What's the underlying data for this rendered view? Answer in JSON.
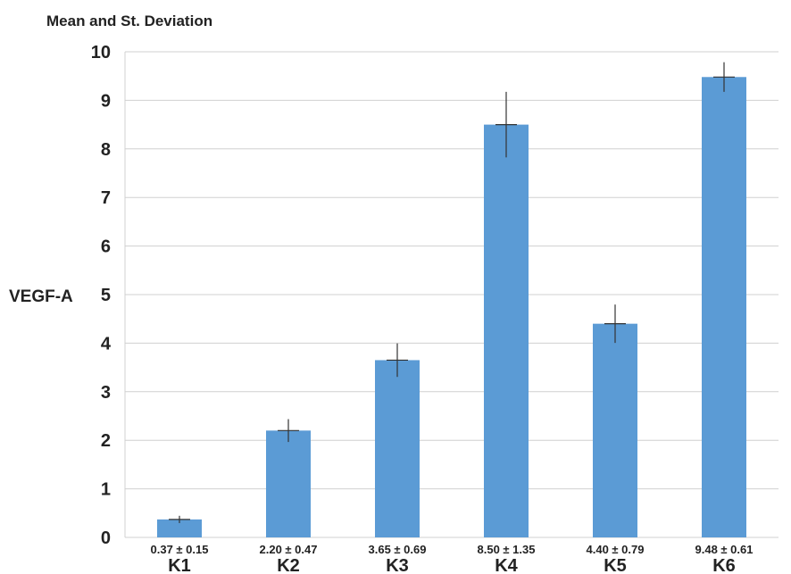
{
  "chart_data": {
    "type": "bar",
    "title": "Mean and St. Deviation",
    "ylabel": "VEGF-A",
    "xlabel": "",
    "categories": [
      "K1",
      "K2",
      "K3",
      "K4",
      "K5",
      "K6"
    ],
    "values": [
      0.37,
      2.2,
      3.65,
      8.5,
      4.4,
      9.48
    ],
    "errors": [
      0.15,
      0.47,
      0.69,
      1.35,
      0.79,
      0.61
    ],
    "data_labels": [
      "0.37 ± 0.15",
      "2.20 ± 0.47",
      "3.65 ± 0.69",
      "8.50 ± 1.35",
      "4.40 ± 0.79",
      "9.48 ± 0.61"
    ],
    "ylim": [
      0,
      10
    ],
    "yticks": [
      "0",
      "1",
      "2",
      "3",
      "4",
      "5",
      "6",
      "7",
      "8",
      "9",
      "10"
    ],
    "grid": true,
    "legend": "none",
    "colors": {
      "bar": "#5b9bd5",
      "grid": "#d0d0d0",
      "errorbar": "#333333"
    }
  }
}
